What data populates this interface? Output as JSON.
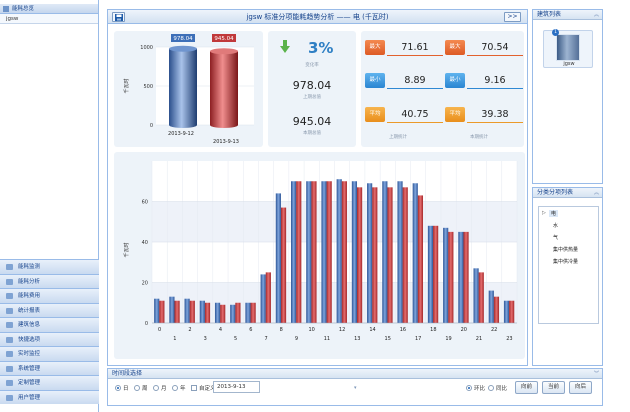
{
  "left_nav": {
    "top_item": "能耗总览",
    "sub_item": "jgsw",
    "items": [
      "能耗监测",
      "能耗分析",
      "能耗费用",
      "统计报表",
      "建筑信息",
      "快捷选项",
      "实时监控",
      "系统管理",
      "定制管理",
      "用户管理"
    ]
  },
  "main": {
    "title": "jgsw 标准分项能耗趋势分析 —— 电 (千瓦时)",
    "next_label": ">>"
  },
  "summary": {
    "cylinder_ylabel": "千瓦时",
    "change_label": "变化率",
    "change_value": "3%",
    "prev_label": "上期总值",
    "prev_value": "978.04",
    "curr_label": "本期总值",
    "curr_value": "945.04",
    "prev_stats_label": "上期统计",
    "curr_stats_label": "本期统计",
    "prev_max": "71.61",
    "curr_max": "70.54",
    "prev_min": "8.89",
    "curr_min": "9.16",
    "prev_avg": "40.75",
    "curr_avg": "39.38",
    "badge_max": "最大",
    "badge_min": "最小",
    "badge_avg": "平均"
  },
  "colors": {
    "blue_series": "#3d6fb8",
    "red_series": "#c0393b",
    "accent": "#15428b"
  },
  "chart_data": [
    {
      "type": "bar",
      "categories": [
        "2013-9-12",
        "2013-9-13"
      ],
      "values": [
        978.04,
        945.04
      ],
      "ylabel": "千瓦时",
      "ylim": [
        0,
        1000
      ],
      "yticks": [
        0,
        500,
        1000
      ]
    },
    {
      "type": "bar",
      "ylabel": "千瓦时",
      "ylim": [
        0,
        80
      ],
      "yticks": [
        0,
        20,
        40,
        60
      ],
      "categories": [
        "0",
        "1",
        "2",
        "3",
        "4",
        "5",
        "6",
        "7",
        "8",
        "9",
        "10",
        "11",
        "12",
        "13",
        "14",
        "15",
        "16",
        "17",
        "18",
        "19",
        "20",
        "21",
        "22",
        "23"
      ],
      "series": [
        {
          "values": [
            12,
            13,
            12,
            11,
            10,
            9,
            10,
            24,
            64,
            70,
            70,
            70,
            71,
            70,
            69,
            70,
            70,
            69,
            48,
            47,
            45,
            27,
            16,
            11
          ]
        },
        {
          "values": [
            11,
            11,
            11,
            10,
            9,
            10,
            10,
            25,
            57,
            70,
            70,
            70,
            70,
            67,
            67,
            67,
            67,
            63,
            48,
            45,
            45,
            25,
            13,
            11
          ]
        }
      ]
    }
  ],
  "right": {
    "building_title": "建筑列表",
    "building_badge": "1",
    "building_name": "jgsw",
    "tree_title": "分类分项列表",
    "tree_items": [
      "电",
      "水",
      "气",
      "集中供热量",
      "集中供冷量"
    ]
  },
  "time": {
    "title": "时间段选择",
    "opt_day": "日",
    "opt_week": "周",
    "opt_month": "月",
    "opt_year": "年",
    "opt_custom": "自定义",
    "date_value": "2013-9-13",
    "opt_hb": "环比",
    "opt_tb": "同比",
    "btn_prev": "向前",
    "btn_curr": "当前",
    "btn_next": "向后"
  }
}
